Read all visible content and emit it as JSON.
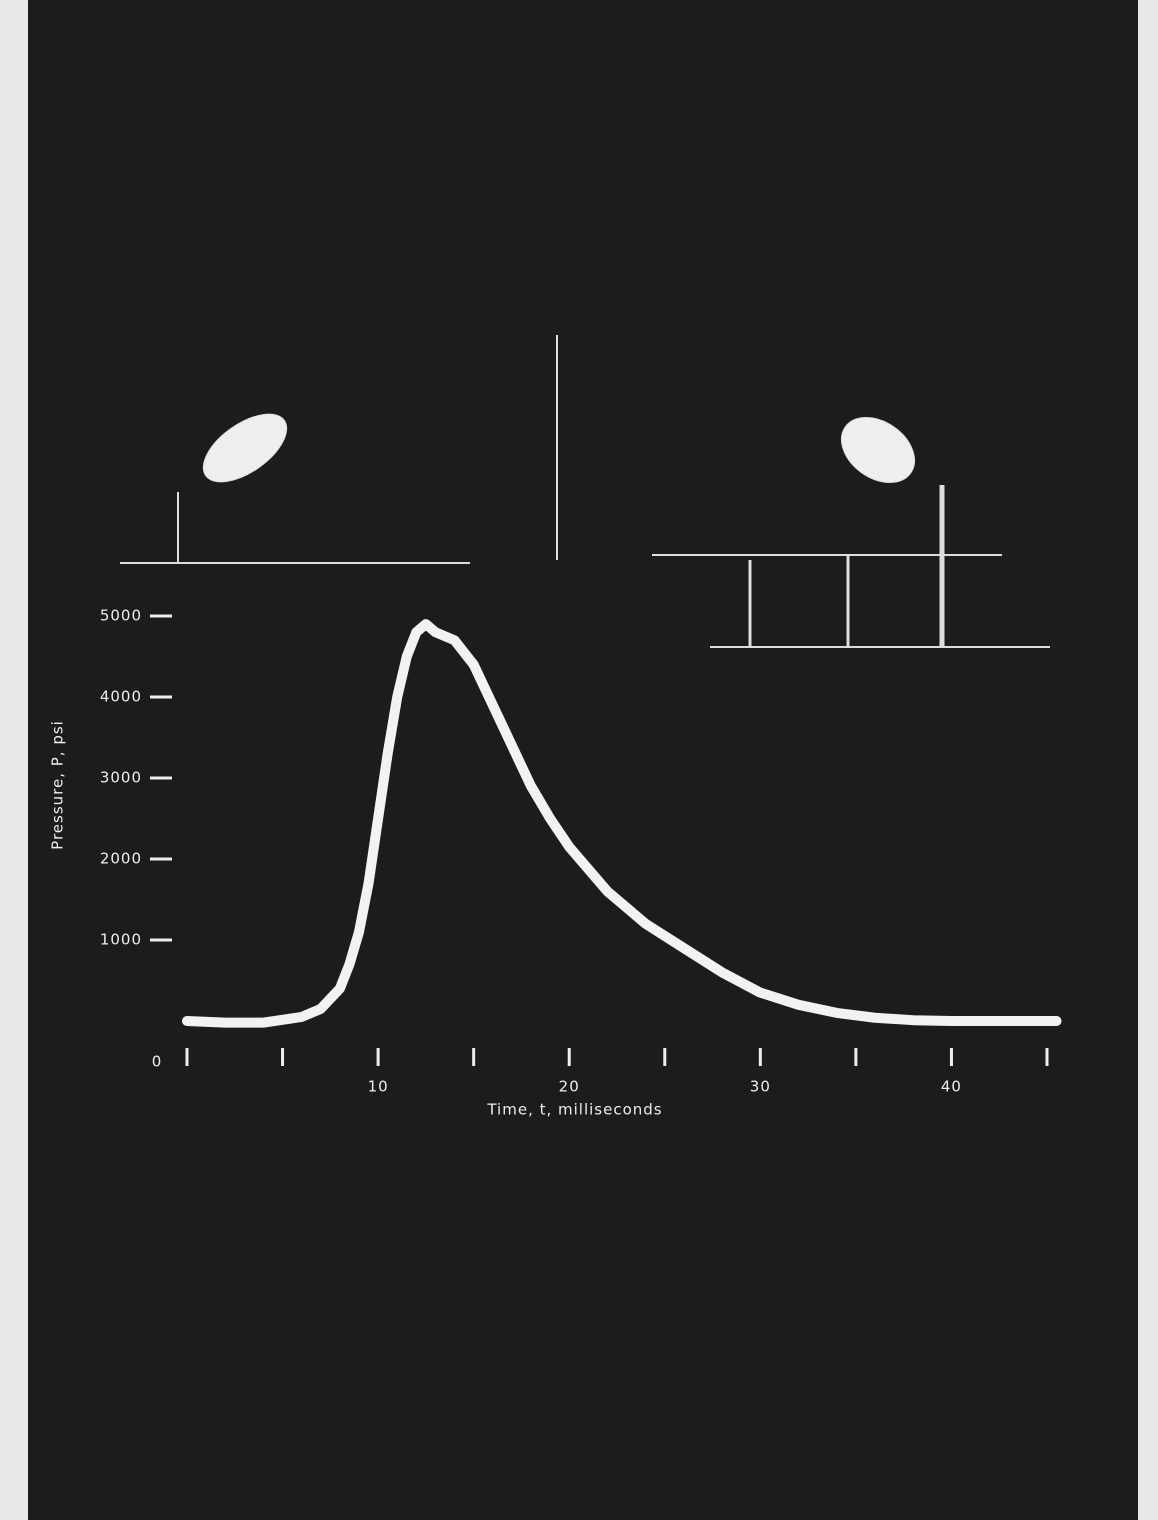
{
  "chart_data": {
    "type": "line",
    "x_label": "Time, t, milliseconds",
    "y_label": "Pressure, P, psi",
    "xlim": [
      0,
      45
    ],
    "ylim": [
      0,
      5000
    ],
    "xticks": [
      0,
      10,
      20,
      30,
      40
    ],
    "xminorticks": [
      5,
      15,
      25,
      35,
      45
    ],
    "yticks": [
      1000,
      2000,
      3000,
      4000,
      5000
    ],
    "series": [
      {
        "color": "#f2f2f2",
        "x": [
          0,
          2,
          4,
          6,
          7,
          8,
          8.5,
          9,
          9.5,
          10,
          10.5,
          11,
          11.5,
          12,
          12.5,
          13,
          14,
          15,
          16,
          17,
          18,
          19,
          20,
          22,
          24,
          26,
          28,
          30,
          32,
          34,
          36,
          38,
          40,
          42,
          44,
          45.5
        ],
        "values": [
          0,
          -20,
          -20,
          50,
          150,
          400,
          700,
          1100,
          1700,
          2500,
          3300,
          4000,
          4500,
          4800,
          4900,
          4800,
          4700,
          4400,
          3900,
          3400,
          2900,
          2500,
          2150,
          1600,
          1200,
          900,
          600,
          350,
          200,
          100,
          40,
          10,
          0,
          0,
          0,
          0
        ]
      }
    ]
  }
}
